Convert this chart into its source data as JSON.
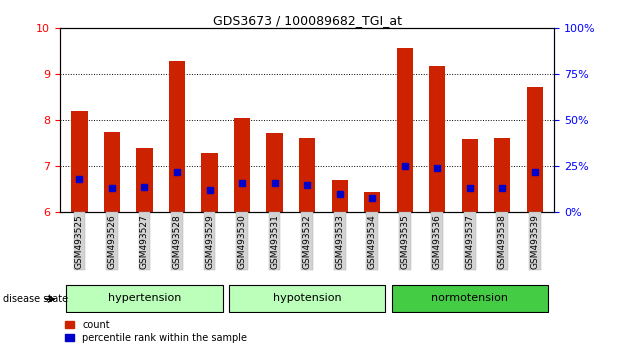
{
  "title": "GDS3673 / 100089682_TGI_at",
  "samples": [
    "GSM493525",
    "GSM493526",
    "GSM493527",
    "GSM493528",
    "GSM493529",
    "GSM493530",
    "GSM493531",
    "GSM493532",
    "GSM493533",
    "GSM493534",
    "GSM493535",
    "GSM493536",
    "GSM493537",
    "GSM493538",
    "GSM493539"
  ],
  "count_values": [
    8.2,
    7.75,
    7.4,
    9.3,
    7.3,
    8.05,
    7.72,
    7.62,
    6.7,
    6.45,
    9.58,
    9.18,
    7.6,
    7.62,
    8.72
  ],
  "percentile_values": [
    18,
    13,
    14,
    22,
    12,
    16,
    16,
    15,
    10,
    8,
    25,
    24,
    13,
    13,
    22
  ],
  "group_defs": [
    {
      "label": "hypertension",
      "start": 0,
      "end": 4,
      "color": "#bbffbb"
    },
    {
      "label": "hypotension",
      "start": 5,
      "end": 9,
      "color": "#bbffbb"
    },
    {
      "label": "normotension",
      "start": 10,
      "end": 14,
      "color": "#44cc44"
    }
  ],
  "ymin": 6,
  "ymax": 10,
  "yticks": [
    6,
    7,
    8,
    9,
    10
  ],
  "right_yticks": [
    0,
    25,
    50,
    75,
    100
  ],
  "bar_color": "#cc2200",
  "percentile_color": "#0000cc",
  "bar_width": 0.5
}
